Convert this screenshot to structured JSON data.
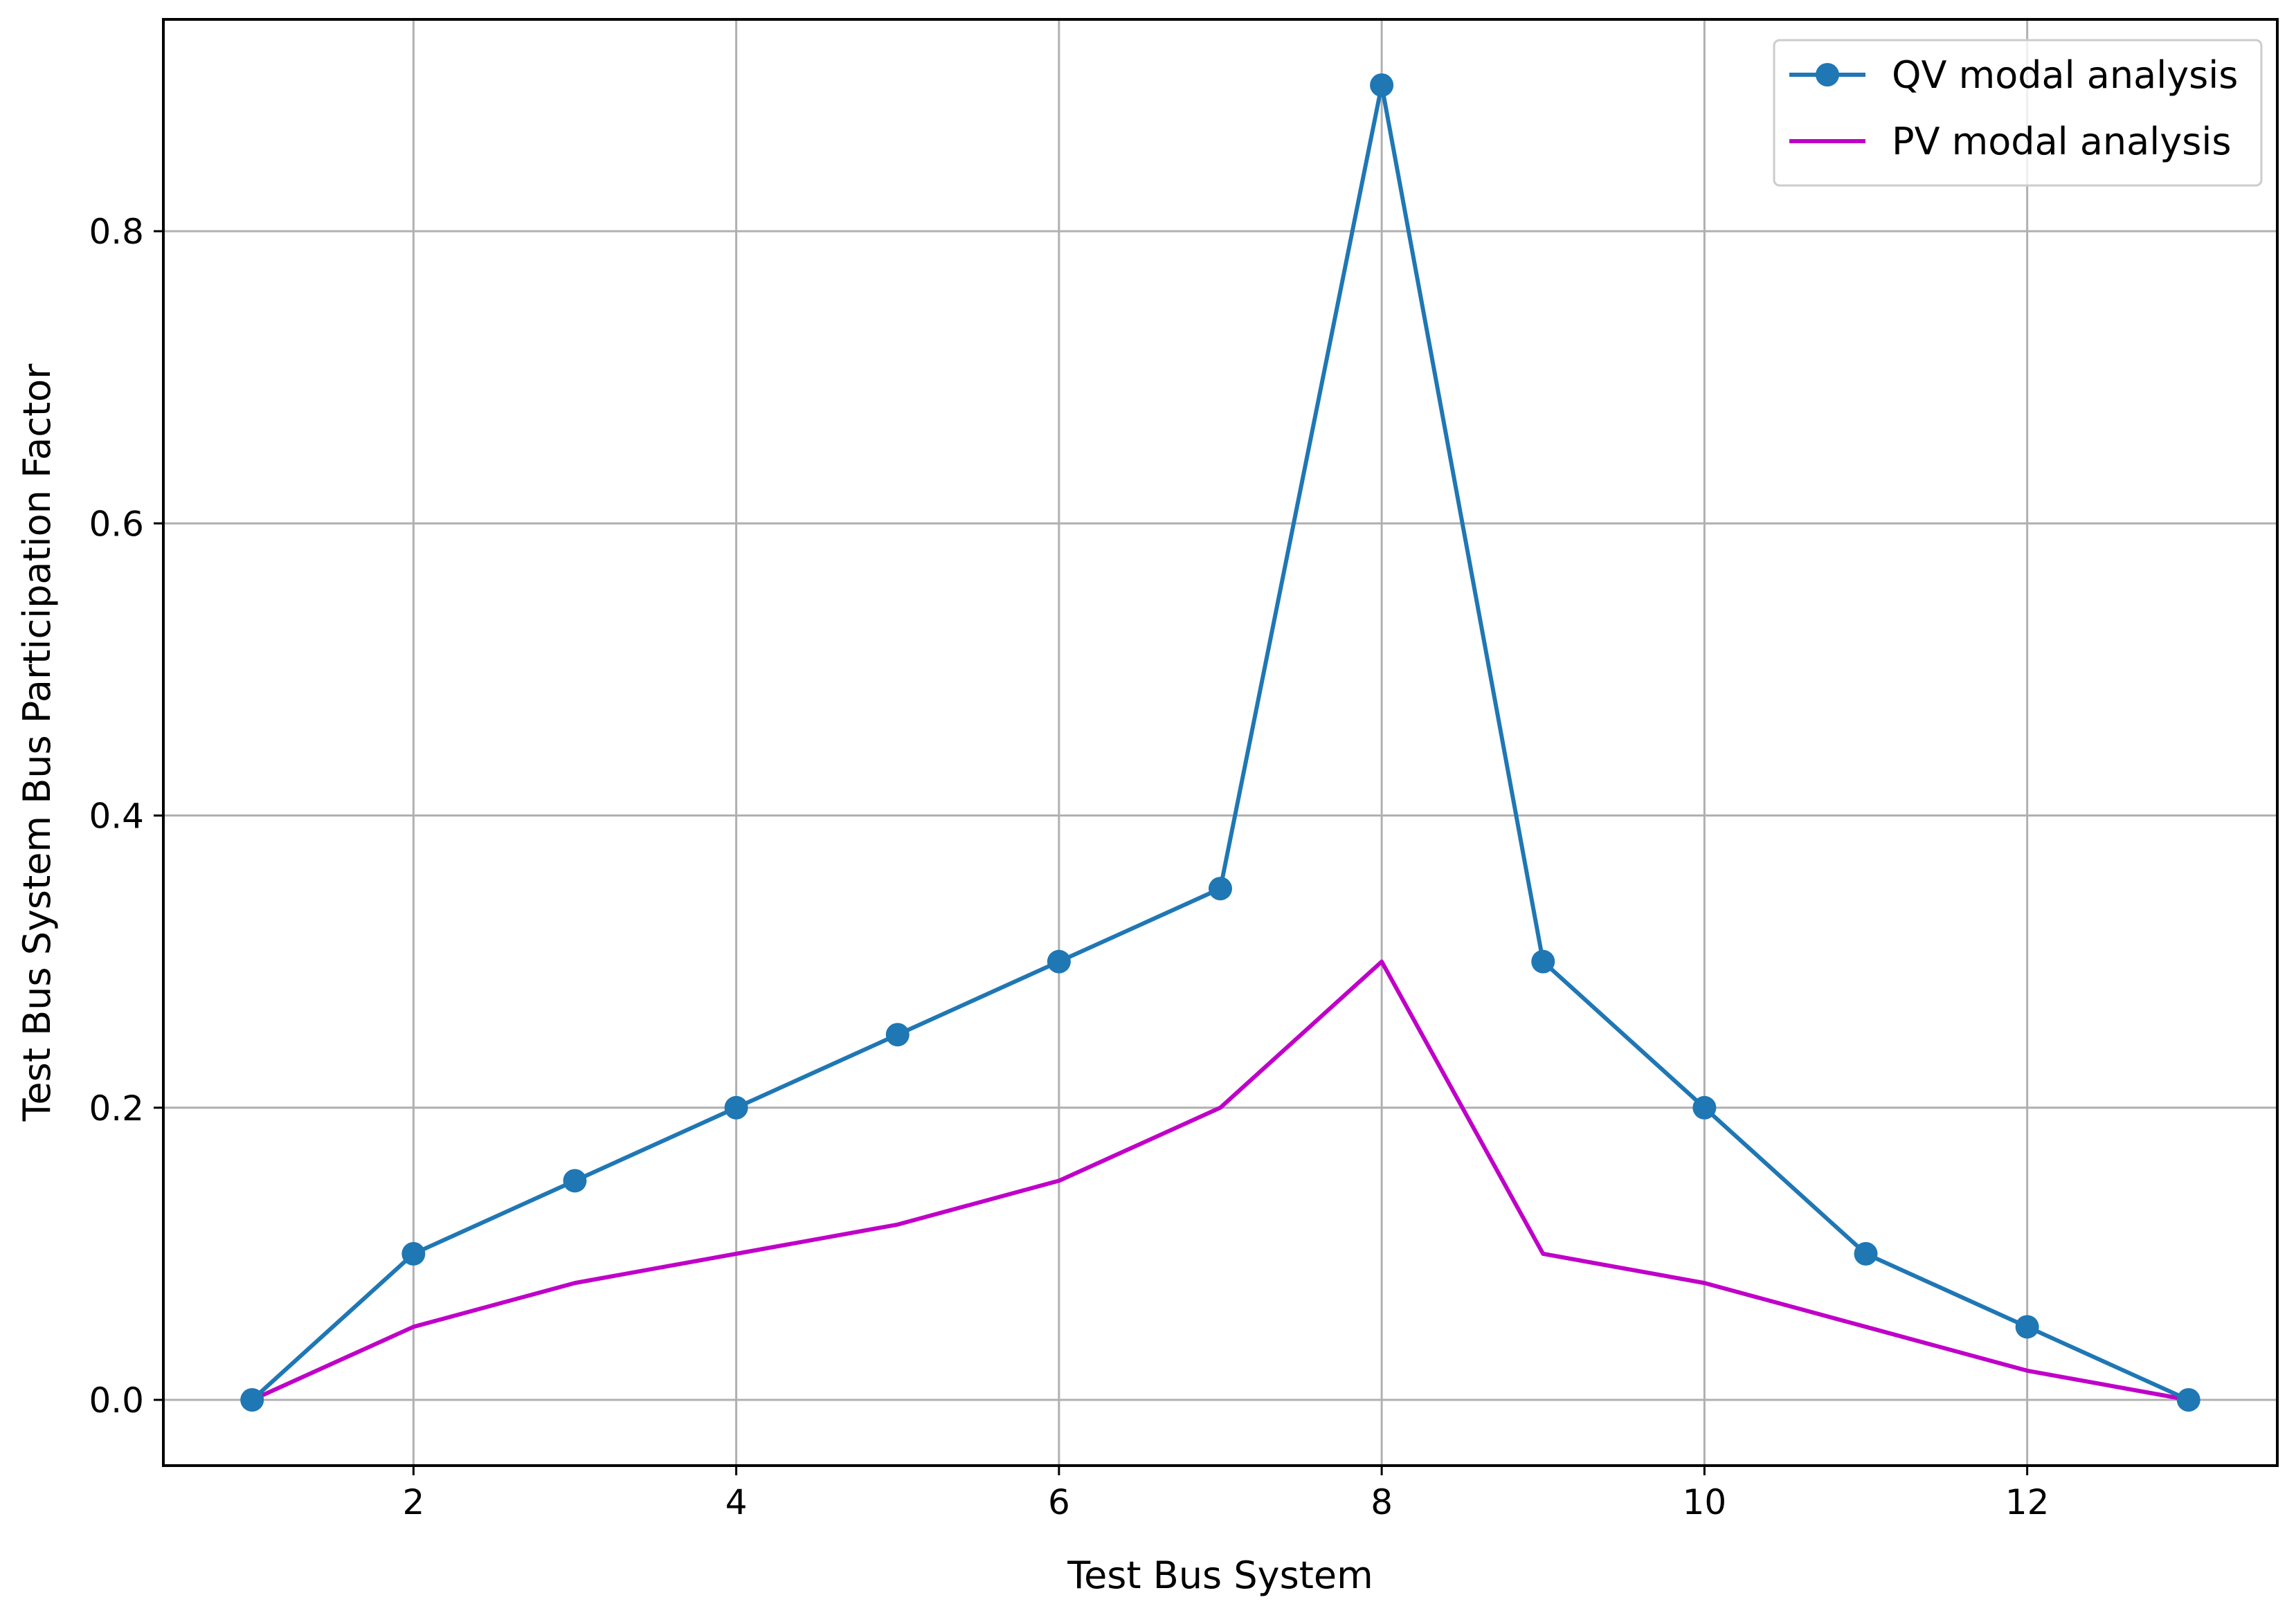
{
  "chart_data": {
    "type": "line",
    "title": "",
    "xlabel": "Test Bus System",
    "ylabel": "Test Bus System Bus Participation Factor",
    "xlim": [
      0.45,
      13.55
    ],
    "ylim": [
      -0.045,
      0.945
    ],
    "xticks": [
      2,
      4,
      6,
      8,
      10,
      12
    ],
    "yticks": [
      0.0,
      0.2,
      0.4,
      0.6,
      0.8
    ],
    "xtick_labels": [
      "2",
      "4",
      "6",
      "8",
      "10",
      "12"
    ],
    "ytick_labels": [
      "0.0",
      "0.2",
      "0.4",
      "0.6",
      "0.8"
    ],
    "grid": true,
    "legend_position": "top-right",
    "x": [
      1,
      2,
      3,
      4,
      5,
      6,
      7,
      8,
      9,
      10,
      11,
      12,
      13
    ],
    "series": [
      {
        "name": "QV modal analysis",
        "color": "#1f77b4",
        "marker": "circle",
        "values": [
          0.0,
          0.1,
          0.15,
          0.2,
          0.25,
          0.3,
          0.35,
          0.9,
          0.3,
          0.2,
          0.1,
          0.05,
          0.0
        ]
      },
      {
        "name": "PV modal analysis",
        "color": "#c000c8",
        "marker": "none",
        "values": [
          0.0,
          0.05,
          0.08,
          0.1,
          0.12,
          0.15,
          0.2,
          0.3,
          0.1,
          0.08,
          0.05,
          0.02,
          0.0
        ]
      }
    ]
  }
}
